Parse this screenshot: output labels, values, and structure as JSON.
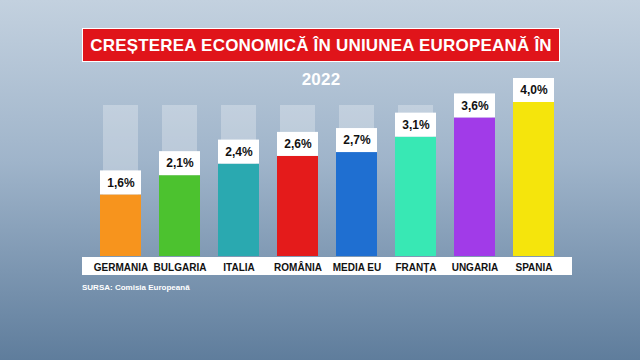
{
  "chart_data": {
    "type": "bar",
    "title": "CREȘTEREA ECONOMICĂ ÎN UNIUNEA EUROPEANĂ ÎN 2022",
    "source": "SURSA: Comisia Europeană",
    "categories": [
      "GERMANIA",
      "BULGARIA",
      "ITALIA",
      "ROMÂNIA",
      "MEDIA EU",
      "FRANȚA",
      "UNGARIA",
      "SPANIA"
    ],
    "values": [
      1.6,
      2.1,
      2.4,
      2.6,
      2.7,
      3.1,
      3.6,
      4.0
    ],
    "value_labels": [
      "1,6%",
      "2,1%",
      "2,4%",
      "2,6%",
      "2,7%",
      "3,1%",
      "3,6%",
      "4,0%"
    ],
    "colors": [
      "#f7941d",
      "#4cc22f",
      "#2aa9b0",
      "#e41b1b",
      "#1f6fd1",
      "#38e8b4",
      "#a13be8",
      "#f5e50c"
    ],
    "data_labels": true,
    "tick_labels": "x"
  }
}
